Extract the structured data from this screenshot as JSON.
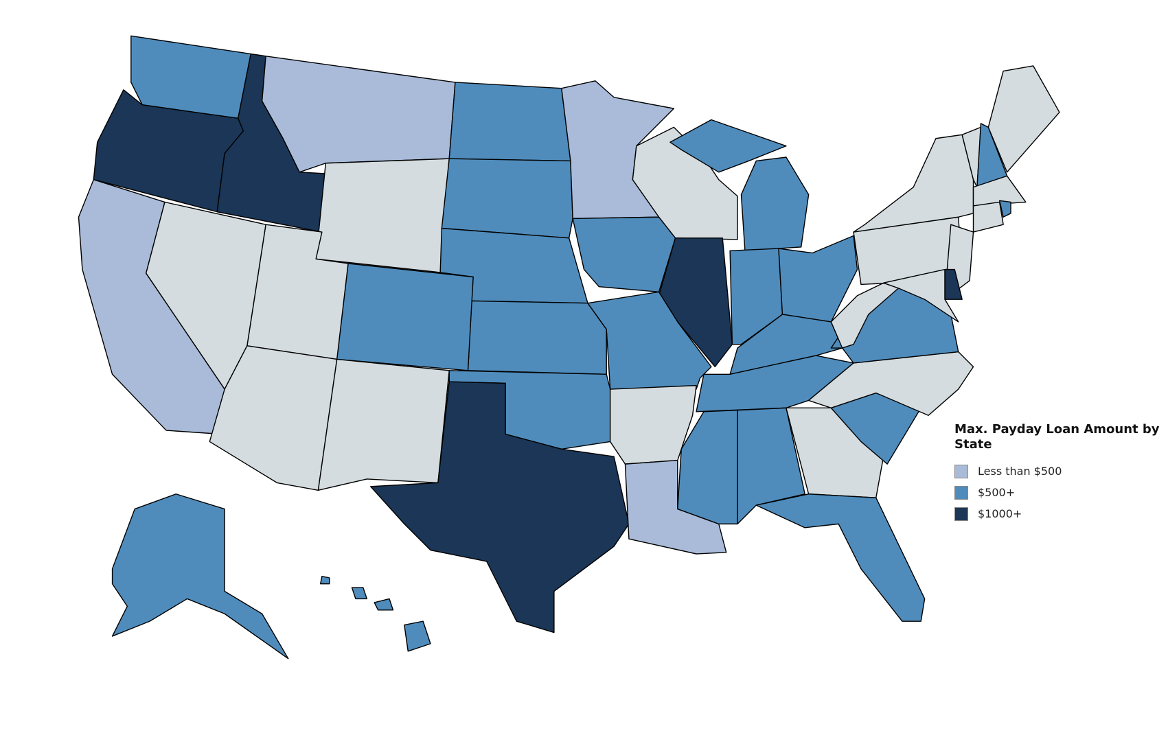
{
  "legend": {
    "title": "Max. Payday Loan Amount by State",
    "items": [
      {
        "label": "Less than $500",
        "color": "#a9bbd9"
      },
      {
        "label": "$500+",
        "color": "#4f8cbc"
      },
      {
        "label": "$1000+",
        "color": "#1b3656"
      }
    ]
  }
}
